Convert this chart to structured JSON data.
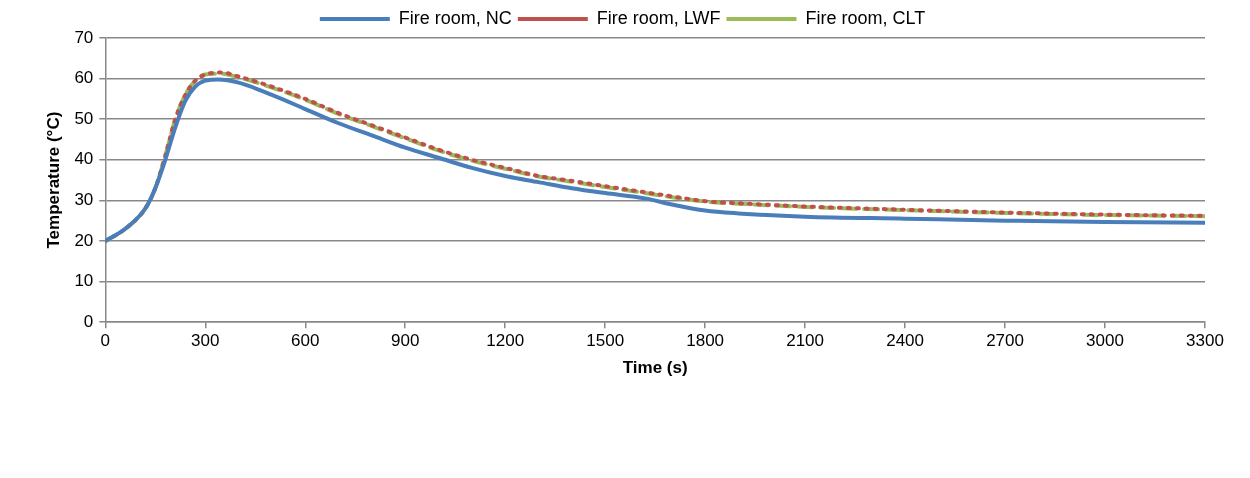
{
  "chart_data": {
    "type": "line",
    "xlabel": "Time (s)",
    "ylabel": "Temperature (°C)",
    "xlim": [
      0,
      3300
    ],
    "xticks": [
      0,
      300,
      600,
      900,
      1200,
      1500,
      1800,
      2100,
      2400,
      2700,
      3000,
      3300
    ],
    "ylim": [
      0,
      70
    ],
    "yticks": [
      0,
      10,
      20,
      30,
      40,
      50,
      60,
      70
    ],
    "grid": "y",
    "legend": "top",
    "marker": "none",
    "series": [
      {
        "name": "Fire room, NC",
        "color": "#4a7ebb",
        "line_style": "solid",
        "x": [
          0,
          60,
          120,
          150,
          180,
          210,
          240,
          270,
          300,
          340,
          400,
          500,
          600,
          700,
          800,
          900,
          1000,
          1100,
          1200,
          1300,
          1400,
          1500,
          1620,
          1700,
          1800,
          1900,
          2100,
          2400,
          2700,
          3000,
          3300
        ],
        "values": [
          20,
          23,
          28,
          33,
          40,
          48,
          54.5,
          58,
          59.5,
          59.8,
          59,
          56,
          52.5,
          49,
          46,
          43,
          40.5,
          38,
          36,
          34.5,
          33,
          31.8,
          30.5,
          29,
          27.5,
          26.8,
          26,
          25.5,
          25,
          24.7,
          24.5
        ]
      },
      {
        "name": "Fire room, LWF",
        "color": "#c0504d",
        "line_style": "dotted",
        "x": [
          0,
          60,
          120,
          150,
          180,
          210,
          240,
          270,
          300,
          350,
          400,
          500,
          600,
          700,
          800,
          900,
          1000,
          1100,
          1200,
          1300,
          1400,
          1500,
          1620,
          1700,
          1800,
          1900,
          2100,
          2400,
          2700,
          3000,
          3300
        ],
        "values": [
          20,
          23,
          28,
          33,
          41,
          50,
          56,
          59.5,
          61,
          61.5,
          60.5,
          58,
          55,
          51.5,
          48.5,
          45.5,
          42.5,
          40,
          38,
          36,
          34.8,
          33.5,
          32,
          31,
          29.8,
          29.3,
          28.5,
          27.7,
          27,
          26.5,
          26.2
        ]
      },
      {
        "name": "Fire room, CLT",
        "color": "#9bbb59",
        "line_style": "dashed",
        "x": [
          0,
          60,
          120,
          150,
          180,
          210,
          240,
          270,
          300,
          350,
          400,
          500,
          600,
          700,
          800,
          900,
          1000,
          1100,
          1200,
          1300,
          1400,
          1500,
          1620,
          1700,
          1800,
          1900,
          2100,
          2400,
          2700,
          3000,
          3300
        ],
        "values": [
          20,
          23,
          28,
          33,
          41,
          50,
          56,
          59.5,
          61,
          61.2,
          60.3,
          57.8,
          54.8,
          51.3,
          48.3,
          45.3,
          42.3,
          39.8,
          37.8,
          35.9,
          34.6,
          33.3,
          31.8,
          30.8,
          29.7,
          29.2,
          28.4,
          27.6,
          26.9,
          26.4,
          26.1
        ]
      }
    ]
  }
}
